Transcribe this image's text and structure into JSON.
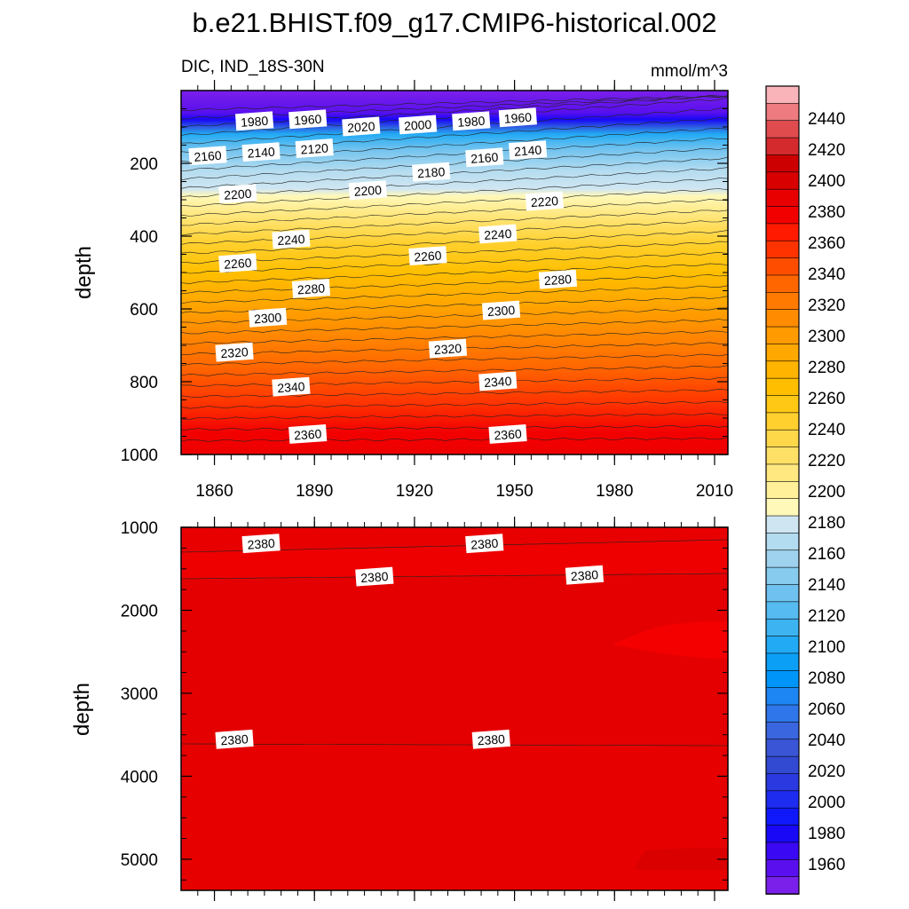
{
  "chart_data": {
    "type": "heatmap",
    "title": "b.e21.BHIST.f09_g17.CMIP6-historical.002",
    "subtitle_left": "DIC, IND_18S-30N",
    "units": "mmol/m^3",
    "colorbar": {
      "labels": [
        "2440",
        "2420",
        "2400",
        "2380",
        "2360",
        "2340",
        "2320",
        "2300",
        "2280",
        "2260",
        "2240",
        "2220",
        "2200",
        "2180",
        "2160",
        "2140",
        "2120",
        "2100",
        "2080",
        "2060",
        "2040",
        "2020",
        "2000",
        "1980",
        "1960"
      ],
      "colors_top_to_bottom": [
        "#f8b4b8",
        "#ee7b7f",
        "#e04b4e",
        "#d42a2e",
        "#cc0000",
        "#d80000",
        "#e80000",
        "#f20000",
        "#ff1a00",
        "#ff3300",
        "#ff4d00",
        "#ff6600",
        "#ff7a00",
        "#ff8c00",
        "#ff9a00",
        "#ffa800",
        "#ffb400",
        "#ffbf00",
        "#ffc814",
        "#ffd02e",
        "#ffd84a",
        "#ffe066",
        "#ffe880",
        "#fff099",
        "#fff8b8",
        "#cfe6f2",
        "#b4dcf0",
        "#9ed2ee",
        "#87cbee",
        "#6fc2ef",
        "#55bbf0",
        "#3db3f2",
        "#22aaf4",
        "#0ba0f6",
        "#0095f8",
        "#1e86f2",
        "#2e76ea",
        "#3a66e0",
        "#3a56d6",
        "#3249d2",
        "#2a3ae0",
        "#1e2cf0",
        "#0e18f8",
        "#1808f6",
        "#3a08f2",
        "#5a10ee",
        "#7a20ea"
      ]
    },
    "panels": [
      {
        "name": "upper",
        "ylabel": "depth",
        "y_ticks": [
          200,
          400,
          600,
          800,
          1000
        ],
        "ylim": [
          0,
          1000
        ],
        "x_ticks": [
          1860,
          1890,
          1920,
          1950,
          1980,
          2010
        ],
        "xlim": [
          1850,
          2014
        ],
        "contour_labels": [
          {
            "text": "1980",
            "x": 1872,
            "y": 85
          },
          {
            "text": "1960",
            "x": 1888,
            "y": 80
          },
          {
            "text": "2020",
            "x": 1904,
            "y": 100
          },
          {
            "text": "2000",
            "x": 1921,
            "y": 95
          },
          {
            "text": "1980",
            "x": 1937,
            "y": 85
          },
          {
            "text": "1960",
            "x": 1951,
            "y": 75
          },
          {
            "text": "2160",
            "x": 1858,
            "y": 180
          },
          {
            "text": "2140",
            "x": 1874,
            "y": 170
          },
          {
            "text": "2120",
            "x": 1890,
            "y": 160
          },
          {
            "text": "2180",
            "x": 1925,
            "y": 225
          },
          {
            "text": "2160",
            "x": 1941,
            "y": 185
          },
          {
            "text": "2140",
            "x": 1954,
            "y": 165
          },
          {
            "text": "2200",
            "x": 1867,
            "y": 285
          },
          {
            "text": "2200",
            "x": 1906,
            "y": 275
          },
          {
            "text": "2220",
            "x": 1959,
            "y": 305
          },
          {
            "text": "2240",
            "x": 1883,
            "y": 410
          },
          {
            "text": "2240",
            "x": 1945,
            "y": 395
          },
          {
            "text": "2260",
            "x": 1867,
            "y": 475
          },
          {
            "text": "2260",
            "x": 1924,
            "y": 455
          },
          {
            "text": "2280",
            "x": 1889,
            "y": 545
          },
          {
            "text": "2280",
            "x": 1963,
            "y": 520
          },
          {
            "text": "2300",
            "x": 1876,
            "y": 625
          },
          {
            "text": "2300",
            "x": 1946,
            "y": 605
          },
          {
            "text": "2320",
            "x": 1866,
            "y": 720
          },
          {
            "text": "2320",
            "x": 1930,
            "y": 710
          },
          {
            "text": "2340",
            "x": 1883,
            "y": 815
          },
          {
            "text": "2340",
            "x": 1945,
            "y": 800
          },
          {
            "text": "2360",
            "x": 1888,
            "y": 945
          },
          {
            "text": "2360",
            "x": 1948,
            "y": 945
          }
        ]
      },
      {
        "name": "lower",
        "ylabel": "depth",
        "y_ticks": [
          1000,
          2000,
          3000,
          4000,
          5000
        ],
        "ylim": [
          1000,
          5375
        ],
        "xlim": [
          1850,
          2014
        ],
        "contour_labels": [
          {
            "text": "2380",
            "x": 1874,
            "y": 1200
          },
          {
            "text": "2380",
            "x": 1941,
            "y": 1200
          },
          {
            "text": "2380",
            "x": 1908,
            "y": 1600
          },
          {
            "text": "2380",
            "x": 1971,
            "y": 1580
          },
          {
            "text": "2380",
            "x": 1866,
            "y": 3560
          },
          {
            "text": "2380",
            "x": 1943,
            "y": 3560
          }
        ]
      }
    ]
  }
}
